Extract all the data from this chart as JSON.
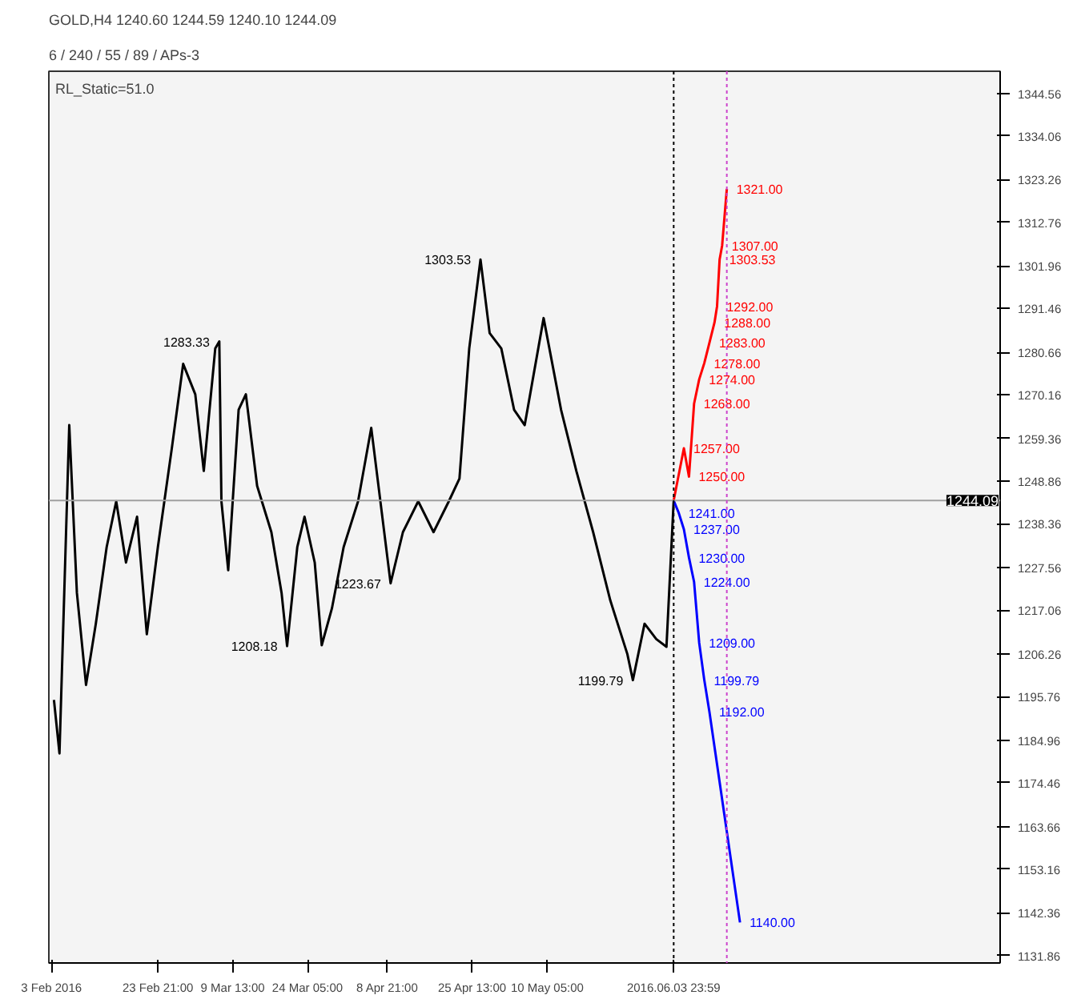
{
  "chart_data": {
    "type": "line",
    "title": "GOLD,H4  1240.60 1244.59 1240.10 1244.09",
    "subtitle": "6 / 240 / 55 / 89 / APs-3",
    "annotations": [
      "RL_Static=51.0"
    ],
    "xlim": [
      "2016-02-02T12:00",
      "2016-08-07"
    ],
    "xticks": [
      {
        "value": "2016-02-03",
        "label": "3 Feb 2016"
      },
      {
        "value": "2016-02-23T21:00",
        "label": "23 Feb 21:00"
      },
      {
        "value": "2016-03-09T13:00",
        "label": "9 Mar 13:00"
      },
      {
        "value": "2016-03-24T05:00",
        "label": "24 Mar 05:00"
      },
      {
        "value": "2016-04-08T21:00",
        "label": "8 Apr 21:00"
      },
      {
        "value": "2016-04-25T13:00",
        "label": "25 Apr 13:00"
      },
      {
        "value": "2016-05-10T05:00",
        "label": "10 May 05:00"
      },
      {
        "value": "2016-06-03T23:59",
        "label": "2016.06.03 23:59"
      }
    ],
    "ylim": [
      1130,
      1350
    ],
    "yticks": [
      1131.86,
      1142.36,
      1153.16,
      1163.66,
      1174.46,
      1184.96,
      1195.76,
      1206.26,
      1217.06,
      1227.56,
      1238.36,
      1248.86,
      1259.36,
      1270.16,
      1280.66,
      1291.46,
      1301.96,
      1312.76,
      1323.26,
      1334.06,
      1344.56
    ],
    "grid": false,
    "line_style": "solid",
    "series": [
      {
        "color": "#000000",
        "x": [
          "2016-02-03T12:00",
          "2016-02-04T14:00",
          "2016-02-06T12:00",
          "2016-02-08",
          "2016-02-09T19:00",
          "2016-02-11T17:00",
          "2016-02-13T20:00",
          "2016-02-15T17:00",
          "2016-02-17T15:00",
          "2016-02-19T19:00",
          "2016-02-21T17:00",
          "2016-02-23T21:00",
          "2016-02-26T15:00",
          "2016-02-28T20:00",
          "2016-03-02T05:00",
          "2016-03-03T21:00",
          "2016-03-06T03:00",
          "2016-03-06T22:00",
          "2016-03-07T08:00",
          "2016-03-08T16:00",
          "2016-03-10T17:00",
          "2016-03-12T03:00",
          "2016-03-14T08:00",
          "2016-03-17T03:00",
          "2016-03-19T03:00",
          "2016-03-20T05:00",
          "2016-03-22T05:00",
          "2016-03-23T15:00",
          "2016-03-25T15:00",
          "2016-03-27",
          "2016-03-29",
          "2016-03-31T07:00",
          "2016-04-03T03:00",
          "2016-04-05T17:00",
          "2016-04-09T12:00",
          "2016-04-11T22:00",
          "2016-04-14T22:00",
          "2016-04-17T22:00",
          "2016-04-20T22:00",
          "2016-04-23",
          "2016-04-24T22:00",
          "2016-04-27T03:00",
          "2016-04-28T22:00",
          "2016-05-01T05:00",
          "2016-05-03T17:00",
          "2016-05-05T19:00",
          "2016-05-09T12:00",
          "2016-05-12T22:00",
          "2016-05-15T22:00",
          "2016-05-19T05:00",
          "2016-05-22T14:00",
          "2016-05-25T22:00",
          "2016-05-27",
          "2016-05-29T07:00",
          "2016-05-31T14:00",
          "2016-06-02T14:00",
          "2016-06-03T23:59"
        ],
        "values": [
          1194.9,
          1181.7,
          1262.7,
          1221.3,
          1198.6,
          1213.7,
          1232.6,
          1243.9,
          1228.8,
          1240.1,
          1211.1,
          1232.6,
          1257.1,
          1277.8,
          1270.3,
          1251.4,
          1281.6,
          1283.33,
          1243.9,
          1226.9,
          1266.5,
          1270.3,
          1247.7,
          1236.3,
          1221.3,
          1208.18,
          1232.6,
          1240.1,
          1228.8,
          1208.4,
          1217.5,
          1232.6,
          1243.9,
          1262.0,
          1223.67,
          1236.3,
          1243.9,
          1236.3,
          1243.9,
          1249.5,
          1281.6,
          1303.53,
          1285.4,
          1281.6,
          1266.5,
          1262.7,
          1289.1,
          1266.5,
          1251.4,
          1236.3,
          1219.4,
          1206.2,
          1199.79,
          1213.7,
          1209.9,
          1208.0,
          1244.09
        ],
        "value_labels": [
          null,
          null,
          null,
          null,
          null,
          null,
          null,
          null,
          null,
          null,
          null,
          null,
          null,
          null,
          null,
          null,
          null,
          "1283.33",
          null,
          null,
          null,
          null,
          null,
          null,
          null,
          "1208.18",
          null,
          null,
          null,
          null,
          null,
          null,
          null,
          null,
          "1223.67",
          null,
          null,
          null,
          null,
          null,
          null,
          "1303.53",
          null,
          null,
          null,
          null,
          null,
          null,
          null,
          null,
          null,
          null,
          "1199.79",
          null,
          null,
          null,
          null
        ]
      },
      {
        "color": "#ff0000",
        "x": [
          "2016-06-03T23:59",
          "2016-06-06",
          "2016-06-07",
          "2016-06-08",
          "2016-06-09",
          "2016-06-10",
          "2016-06-11",
          "2016-06-12",
          "2016-06-12T12:00",
          "2016-06-13",
          "2016-06-13T12:00",
          "2016-06-14T10:00"
        ],
        "values": [
          1244.09,
          1257,
          1250,
          1268,
          1274,
          1278,
          1283,
          1288,
          1292,
          1303.53,
          1307,
          1321
        ],
        "value_labels": [
          null,
          "1257.00",
          "1250.00",
          "1268.00",
          "1274.00",
          "1278.00",
          "1283.00",
          "1288.00",
          "1292.00",
          "1303.53",
          "1307.00",
          "1321.00"
        ]
      },
      {
        "color": "#0000ff",
        "x": [
          "2016-06-03T23:59",
          "2016-06-05",
          "2016-06-06",
          "2016-06-07",
          "2016-06-08",
          "2016-06-09",
          "2016-06-10",
          "2016-06-11",
          "2016-06-17"
        ],
        "values": [
          1244.09,
          1241,
          1237,
          1230,
          1224,
          1209,
          1199.79,
          1192,
          1140
        ],
        "value_labels": [
          null,
          "1241.00",
          "1237.00",
          "1230.00",
          "1224.00",
          "1209.00",
          "1199.79",
          "1192.00",
          "1140.00"
        ]
      }
    ],
    "ref_lines": [
      {
        "axis": "y",
        "value": 1244.09,
        "label": "1244.09",
        "color": "#a0a0a0",
        "line_style": "solid"
      },
      {
        "axis": "x",
        "value": "2016-06-03T23:59",
        "color": "#000000",
        "line_style": "dotted"
      },
      {
        "axis": "x",
        "value": "2016-06-14T10:00",
        "color": "#cc44cc",
        "line_style": "dotted"
      }
    ]
  }
}
